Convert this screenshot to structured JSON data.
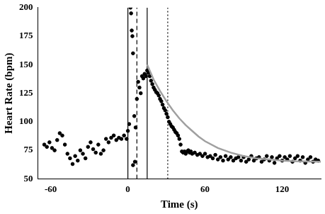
{
  "chart_data": {
    "type": "scatter",
    "x_label": "Time (s)",
    "y_label": "Heart Rate (bpm)",
    "xlim": [
      -70,
      150
    ],
    "xticks": [
      -60,
      0,
      60,
      120
    ],
    "ylim": [
      50,
      200
    ],
    "yticks": [
      50,
      75,
      100,
      125,
      150,
      175,
      200
    ],
    "grid": false,
    "series": [
      {
        "type": "line",
        "color": "#000000",
        "line_style": "solid",
        "x": [
          0,
          0
        ],
        "values": [
          50,
          200
        ]
      },
      {
        "type": "line",
        "color": "#000000",
        "line_style": "dashed",
        "x": [
          7,
          7
        ],
        "values": [
          50,
          200
        ]
      },
      {
        "type": "line",
        "color": "#000000",
        "line_style": "solid",
        "x": [
          15,
          15
        ],
        "values": [
          50,
          200
        ]
      },
      {
        "type": "line",
        "color": "#000000",
        "line_style": "dotted",
        "x": [
          31,
          31
        ],
        "values": [
          50,
          200
        ]
      },
      {
        "type": "scatter",
        "color": "#000000",
        "marker": "circle",
        "x": [
          -65,
          -63,
          -61,
          -59,
          -57,
          -55,
          -53,
          -51,
          -49,
          -47,
          -45,
          -43,
          -41,
          -39,
          -37,
          -35,
          -33,
          -31,
          -29,
          -27,
          -25,
          -23,
          -21,
          -19,
          -17,
          -15,
          -13,
          -11,
          -9,
          -7,
          -5,
          -3,
          -1,
          0,
          1,
          2,
          2.5,
          3,
          3.5,
          4,
          4,
          5,
          5.5,
          6,
          7,
          8,
          9,
          10,
          11,
          12,
          13,
          14,
          15,
          16,
          17,
          18,
          19,
          20,
          21,
          22,
          23,
          24,
          25,
          26,
          27,
          28,
          29,
          30,
          31,
          32,
          33,
          34,
          35,
          36,
          37,
          38,
          39,
          40,
          41,
          42,
          43,
          44,
          45,
          46,
          47,
          48,
          49,
          50,
          52,
          54,
          56,
          58,
          60,
          62,
          64,
          66,
          68,
          70,
          72,
          74,
          76,
          78,
          80,
          82,
          84,
          86,
          88,
          90,
          92,
          94,
          96,
          98,
          100,
          102,
          104,
          106,
          108,
          110,
          112,
          114,
          116,
          118,
          120,
          122,
          124,
          126,
          128,
          130,
          132,
          134,
          136,
          138,
          140,
          142,
          144,
          146,
          148
        ],
        "values": [
          80,
          78,
          82,
          77,
          75,
          84,
          90,
          88,
          80,
          72,
          68,
          63,
          70,
          66,
          75,
          72,
          68,
          78,
          82,
          76,
          73,
          80,
          72,
          75,
          85,
          82,
          86,
          88,
          84,
          86,
          85,
          88,
          85,
          92,
          98,
          200,
          195,
          180,
          175,
          160,
          62,
          105,
          65,
          95,
          120,
          135,
          130,
          125,
          140,
          138,
          142,
          140,
          145,
          143,
          140,
          136,
          133,
          130,
          128,
          126,
          125,
          123,
          120,
          118,
          115,
          112,
          110,
          107,
          104,
          100,
          98,
          96,
          95,
          93,
          91,
          90,
          88,
          85,
          80,
          74,
          73,
          74,
          72,
          74,
          75,
          73,
          74,
          72,
          73,
          71,
          72,
          70,
          72,
          69,
          70,
          68,
          71,
          67,
          69,
          66,
          70,
          67,
          69,
          66,
          68,
          69,
          66,
          69,
          65,
          67,
          70,
          66,
          68,
          69,
          65,
          67,
          70,
          66,
          69,
          64,
          68,
          70,
          66,
          69,
          67,
          70,
          65,
          68,
          70,
          66,
          69,
          64,
          67,
          69,
          65,
          67,
          66
        ]
      },
      {
        "type": "line",
        "color": "#a0a0a0",
        "line_style": "solid",
        "x": [
          15,
          20,
          25,
          30,
          35,
          40,
          45,
          50,
          55,
          60,
          70,
          80,
          90,
          100,
          110,
          120,
          130,
          150
        ],
        "values": [
          150,
          137,
          127,
          118,
          110,
          103,
          97,
          92,
          87,
          83,
          77,
          73,
          70,
          68,
          67,
          66,
          65.5,
          65
        ]
      }
    ]
  }
}
